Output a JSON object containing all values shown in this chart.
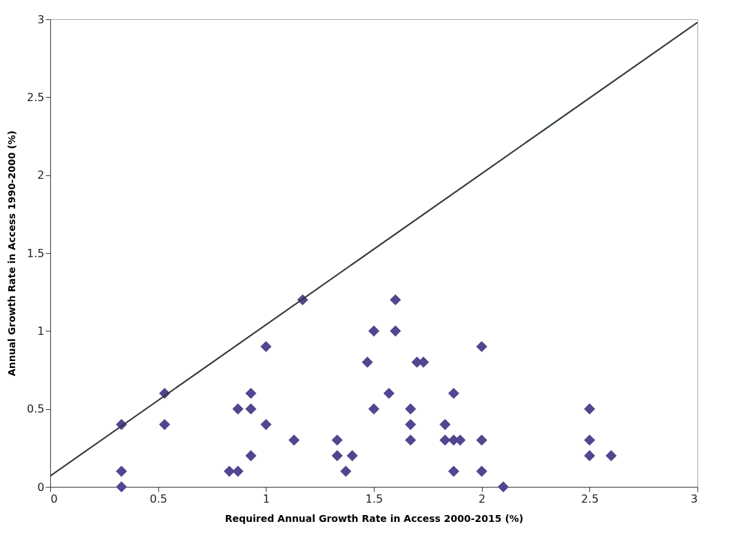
{
  "chart_data": {
    "type": "scatter",
    "xlabel": "Required Annual Growth Rate in Access 2000-2015 (%)",
    "ylabel": "Annual Growth Rate in Access 1990-2000 (%)",
    "xlim": [
      0,
      3
    ],
    "ylim": [
      0,
      3
    ],
    "xticks": [
      0,
      0.5,
      1,
      1.5,
      2,
      2.5,
      3
    ],
    "yticks": [
      0,
      0.5,
      1,
      1.5,
      2,
      2.5,
      3
    ],
    "grid": false,
    "series": [
      {
        "color": "#514690",
        "marker": "diamond",
        "x": [
          0.33,
          0.33,
          0.33,
          0.53,
          0.53,
          0.83,
          0.87,
          0.87,
          0.93,
          0.93,
          0.93,
          1.0,
          1.0,
          1.13,
          1.17,
          1.33,
          1.33,
          1.37,
          1.4,
          1.47,
          1.5,
          1.5,
          1.57,
          1.6,
          1.6,
          1.67,
          1.67,
          1.67,
          1.7,
          1.73,
          1.83,
          1.83,
          1.87,
          1.87,
          1.87,
          1.9,
          2.0,
          2.0,
          2.0,
          2.1,
          2.5,
          2.5,
          2.5,
          2.6
        ],
        "values": [
          0.4,
          0.1,
          0,
          0.6,
          0.4,
          0.1,
          0.1,
          0.5,
          0.6,
          0.5,
          0.2,
          0.9,
          0.4,
          0.3,
          1.2,
          0.3,
          0.2,
          0.1,
          0.2,
          0.8,
          1.0,
          0.5,
          0.6,
          1.2,
          1.0,
          0.5,
          0.4,
          0.3,
          0.8,
          0.8,
          0.4,
          0.3,
          0.6,
          0.3,
          0.1,
          0.3,
          0.9,
          0.3,
          0.1,
          0,
          0.5,
          0.3,
          0.2,
          0.2
        ]
      },
      {
        "type": "line",
        "color": "#2f3a3a",
        "x": [
          0,
          3
        ],
        "values": [
          0.07,
          2.98
        ]
      }
    ]
  }
}
